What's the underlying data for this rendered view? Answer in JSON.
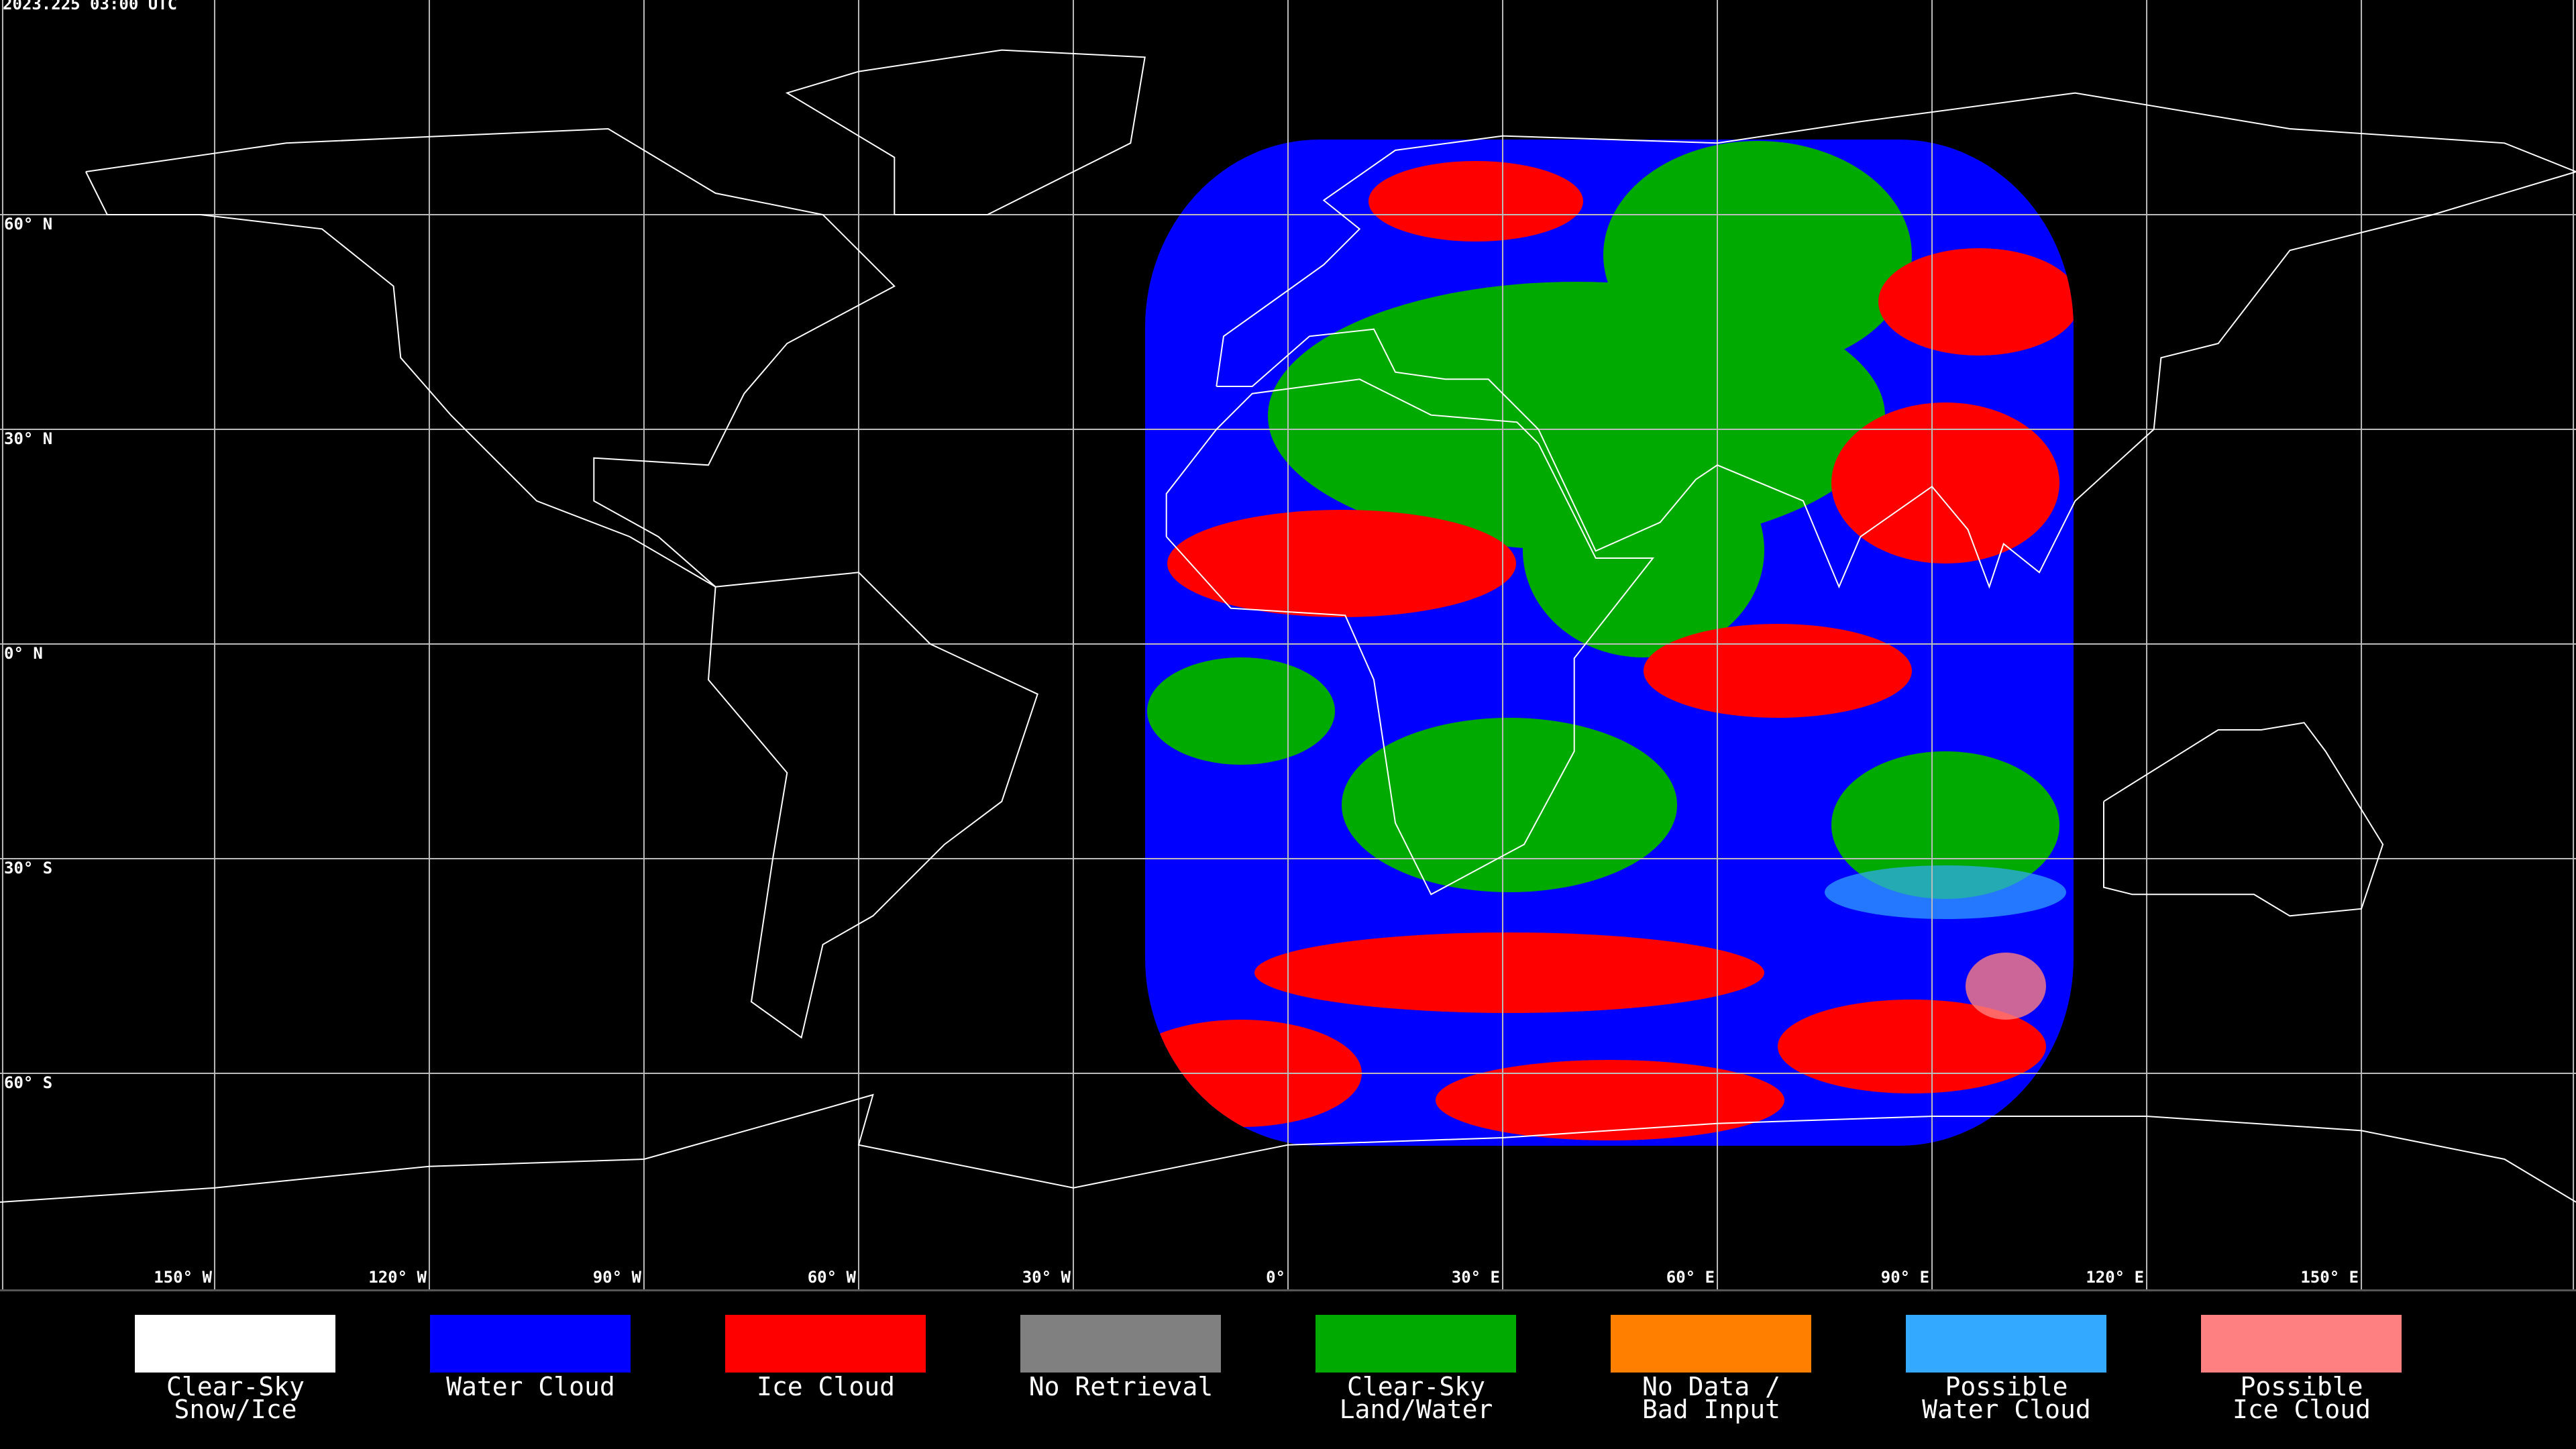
{
  "header": {
    "timestamp": "2023.225 03:00 UTC"
  },
  "map": {
    "latitudes": [
      {
        "value": 60,
        "label": "60° N"
      },
      {
        "value": 30,
        "label": "30° N"
      },
      {
        "value": 0,
        "label": "0° N"
      },
      {
        "value": -30,
        "label": "30° S"
      },
      {
        "value": -60,
        "label": "60° S"
      }
    ],
    "longitudes": [
      {
        "value": -150,
        "label": "150° W"
      },
      {
        "value": -120,
        "label": "120° W"
      },
      {
        "value": -90,
        "label": "90° W"
      },
      {
        "value": -60,
        "label": "60° W"
      },
      {
        "value": -30,
        "label": "30° W"
      },
      {
        "value": 0,
        "label": "0°"
      },
      {
        "value": 30,
        "label": "30° E"
      },
      {
        "value": 60,
        "label": "60° E"
      },
      {
        "value": 90,
        "label": "90° E"
      },
      {
        "value": 120,
        "label": "120° E"
      },
      {
        "value": 150,
        "label": "150° E"
      }
    ]
  },
  "legend": [
    {
      "lines": [
        "Clear-Sky",
        "Snow/Ice"
      ],
      "color": "#ffffff"
    },
    {
      "lines": [
        "Water Cloud"
      ],
      "color": "#0000ff"
    },
    {
      "lines": [
        "Ice Cloud"
      ],
      "color": "#ff0000"
    },
    {
      "lines": [
        "No Retrieval"
      ],
      "color": "#808080"
    },
    {
      "lines": [
        "Clear-Sky",
        "Land/Water"
      ],
      "color": "#00aa00"
    },
    {
      "lines": [
        "No Data /",
        "Bad Input"
      ],
      "color": "#ff8000"
    },
    {
      "lines": [
        "Possible",
        "Water Cloud"
      ],
      "color": "#33aaff"
    },
    {
      "lines": [
        "Possible",
        "Ice Cloud"
      ],
      "color": "#ff8080"
    }
  ]
}
